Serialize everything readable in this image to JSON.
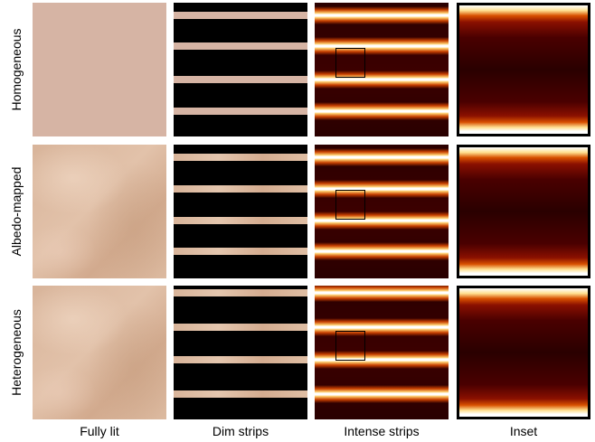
{
  "rows": [
    {
      "label": "Homogeneous"
    },
    {
      "label": "Albedo-mapped"
    },
    {
      "label": "Heterogeneous"
    }
  ],
  "columns": [
    "Fully lit",
    "Dim strips",
    "Intense strips",
    "Inset"
  ]
}
